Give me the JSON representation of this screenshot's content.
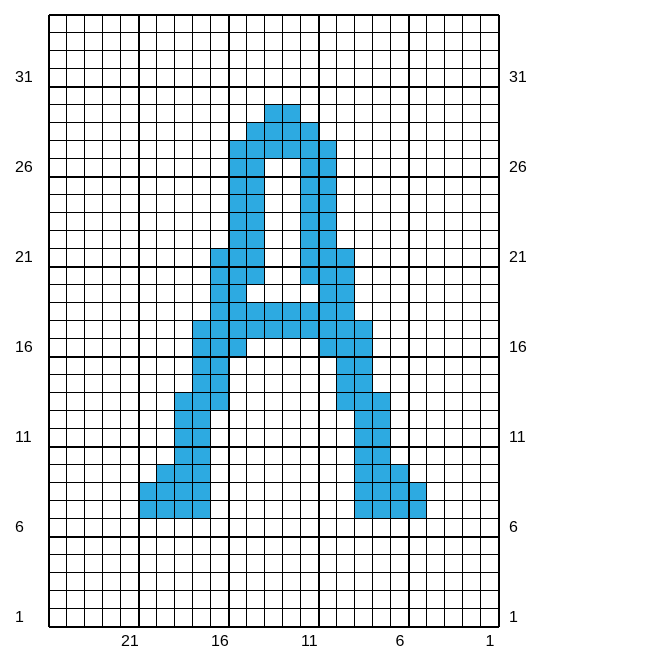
{
  "grid": {
    "cols": 25,
    "rows": 34,
    "cell_size": 18,
    "offset_x": 49,
    "offset_y": 15,
    "background_color": "#ffffff",
    "thin_line_color": "#000000",
    "thin_line_width": 1,
    "thick_line_color": "#000000",
    "thick_line_width": 2,
    "fill_color": "#2daae1"
  },
  "axis": {
    "x_ticks": [
      21,
      16,
      11,
      6,
      1
    ],
    "y_ticks_left": [
      31,
      26,
      21,
      16,
      11,
      6,
      1
    ],
    "y_ticks_right": [
      31,
      26,
      21,
      16,
      11,
      6,
      1
    ],
    "thick_x_interval": 5,
    "thick_y_interval": 5,
    "col_numbering_start": 1,
    "row_numbering_start": 1,
    "label_fontsize": 16,
    "label_color": "#000000"
  },
  "filled_cells": [
    {
      "col": 12,
      "row": 29
    },
    {
      "col": 13,
      "row": 29
    },
    {
      "col": 11,
      "row": 28
    },
    {
      "col": 12,
      "row": 28
    },
    {
      "col": 13,
      "row": 28
    },
    {
      "col": 14,
      "row": 28
    },
    {
      "col": 10,
      "row": 27
    },
    {
      "col": 11,
      "row": 27
    },
    {
      "col": 12,
      "row": 27
    },
    {
      "col": 13,
      "row": 27
    },
    {
      "col": 14,
      "row": 27
    },
    {
      "col": 15,
      "row": 27
    },
    {
      "col": 10,
      "row": 26
    },
    {
      "col": 11,
      "row": 26
    },
    {
      "col": 14,
      "row": 26
    },
    {
      "col": 15,
      "row": 26
    },
    {
      "col": 10,
      "row": 25
    },
    {
      "col": 11,
      "row": 25
    },
    {
      "col": 14,
      "row": 25
    },
    {
      "col": 15,
      "row": 25
    },
    {
      "col": 10,
      "row": 24
    },
    {
      "col": 11,
      "row": 24
    },
    {
      "col": 14,
      "row": 24
    },
    {
      "col": 15,
      "row": 24
    },
    {
      "col": 10,
      "row": 23
    },
    {
      "col": 11,
      "row": 23
    },
    {
      "col": 14,
      "row": 23
    },
    {
      "col": 15,
      "row": 23
    },
    {
      "col": 10,
      "row": 22
    },
    {
      "col": 11,
      "row": 22
    },
    {
      "col": 14,
      "row": 22
    },
    {
      "col": 15,
      "row": 22
    },
    {
      "col": 9,
      "row": 21
    },
    {
      "col": 10,
      "row": 21
    },
    {
      "col": 11,
      "row": 21
    },
    {
      "col": 14,
      "row": 21
    },
    {
      "col": 15,
      "row": 21
    },
    {
      "col": 16,
      "row": 21
    },
    {
      "col": 9,
      "row": 20
    },
    {
      "col": 10,
      "row": 20
    },
    {
      "col": 11,
      "row": 20
    },
    {
      "col": 14,
      "row": 20
    },
    {
      "col": 15,
      "row": 20
    },
    {
      "col": 16,
      "row": 20
    },
    {
      "col": 9,
      "row": 19
    },
    {
      "col": 10,
      "row": 19
    },
    {
      "col": 15,
      "row": 19
    },
    {
      "col": 16,
      "row": 19
    },
    {
      "col": 9,
      "row": 18
    },
    {
      "col": 10,
      "row": 18
    },
    {
      "col": 11,
      "row": 18
    },
    {
      "col": 12,
      "row": 18
    },
    {
      "col": 13,
      "row": 18
    },
    {
      "col": 14,
      "row": 18
    },
    {
      "col": 15,
      "row": 18
    },
    {
      "col": 16,
      "row": 18
    },
    {
      "col": 8,
      "row": 17
    },
    {
      "col": 9,
      "row": 17
    },
    {
      "col": 10,
      "row": 17
    },
    {
      "col": 11,
      "row": 17
    },
    {
      "col": 12,
      "row": 17
    },
    {
      "col": 13,
      "row": 17
    },
    {
      "col": 14,
      "row": 17
    },
    {
      "col": 15,
      "row": 17
    },
    {
      "col": 16,
      "row": 17
    },
    {
      "col": 17,
      "row": 17
    },
    {
      "col": 8,
      "row": 16
    },
    {
      "col": 9,
      "row": 16
    },
    {
      "col": 10,
      "row": 16
    },
    {
      "col": 15,
      "row": 16
    },
    {
      "col": 16,
      "row": 16
    },
    {
      "col": 17,
      "row": 16
    },
    {
      "col": 8,
      "row": 15
    },
    {
      "col": 9,
      "row": 15
    },
    {
      "col": 16,
      "row": 15
    },
    {
      "col": 17,
      "row": 15
    },
    {
      "col": 8,
      "row": 14
    },
    {
      "col": 9,
      "row": 14
    },
    {
      "col": 16,
      "row": 14
    },
    {
      "col": 17,
      "row": 14
    },
    {
      "col": 7,
      "row": 13
    },
    {
      "col": 8,
      "row": 13
    },
    {
      "col": 9,
      "row": 13
    },
    {
      "col": 16,
      "row": 13
    },
    {
      "col": 17,
      "row": 13
    },
    {
      "col": 18,
      "row": 13
    },
    {
      "col": 7,
      "row": 12
    },
    {
      "col": 8,
      "row": 12
    },
    {
      "col": 17,
      "row": 12
    },
    {
      "col": 18,
      "row": 12
    },
    {
      "col": 7,
      "row": 11
    },
    {
      "col": 8,
      "row": 11
    },
    {
      "col": 17,
      "row": 11
    },
    {
      "col": 18,
      "row": 11
    },
    {
      "col": 7,
      "row": 10
    },
    {
      "col": 8,
      "row": 10
    },
    {
      "col": 17,
      "row": 10
    },
    {
      "col": 18,
      "row": 10
    },
    {
      "col": 6,
      "row": 9
    },
    {
      "col": 7,
      "row": 9
    },
    {
      "col": 8,
      "row": 9
    },
    {
      "col": 17,
      "row": 9
    },
    {
      "col": 18,
      "row": 9
    },
    {
      "col": 19,
      "row": 9
    },
    {
      "col": 5,
      "row": 8
    },
    {
      "col": 6,
      "row": 8
    },
    {
      "col": 7,
      "row": 8
    },
    {
      "col": 8,
      "row": 8
    },
    {
      "col": 17,
      "row": 8
    },
    {
      "col": 18,
      "row": 8
    },
    {
      "col": 19,
      "row": 8
    },
    {
      "col": 20,
      "row": 8
    },
    {
      "col": 5,
      "row": 7
    },
    {
      "col": 6,
      "row": 7
    },
    {
      "col": 7,
      "row": 7
    },
    {
      "col": 8,
      "row": 7
    },
    {
      "col": 17,
      "row": 7
    },
    {
      "col": 18,
      "row": 7
    },
    {
      "col": 19,
      "row": 7
    },
    {
      "col": 20,
      "row": 7
    }
  ]
}
